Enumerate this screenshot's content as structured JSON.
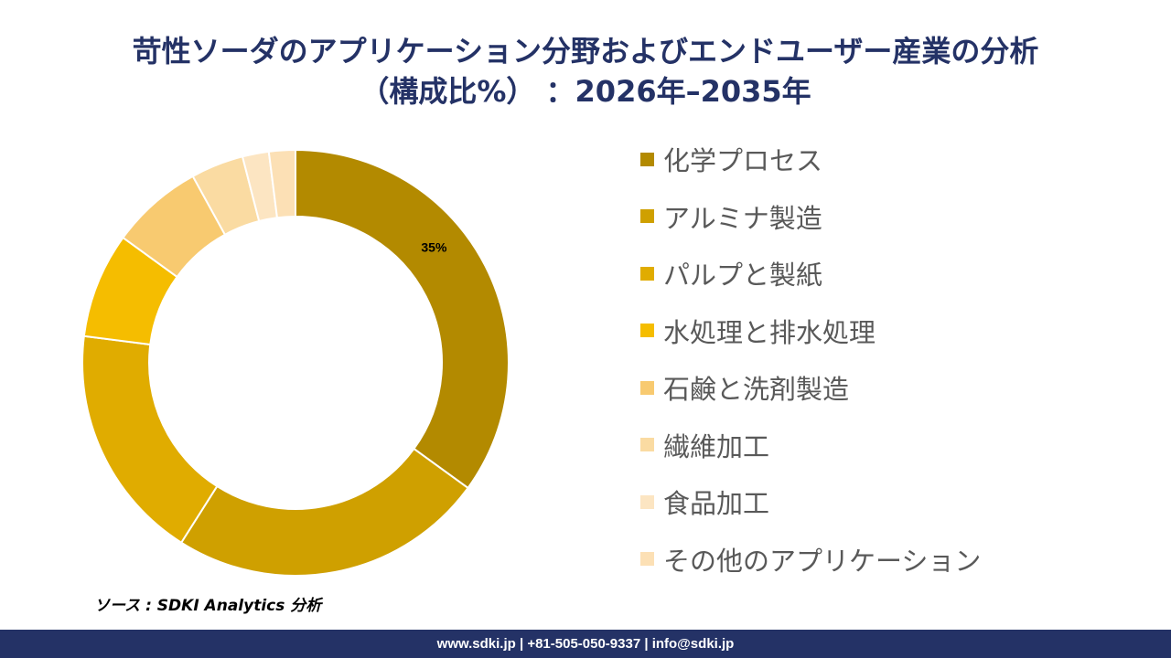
{
  "title": {
    "line1": "苛性ソーダのアプリケーション分野およびエンドユーザー産業の分析",
    "line2": "（構成比%） ：2026年–2035年"
  },
  "chart_data": {
    "type": "pie",
    "donut": true,
    "categories": [
      "化学プロセス",
      "アルミナ製造",
      "パルプと製紙",
      "水処理と排水処理",
      "石鹸と洗剤製造",
      "繊維加工",
      "食品加工",
      "その他のアプリケーション"
    ],
    "values": [
      35,
      24,
      18,
      8,
      7,
      4,
      2,
      2
    ],
    "colors": [
      "#B38A00",
      "#CFA000",
      "#E0AC00",
      "#F5BD00",
      "#F8CA70",
      "#FADBA2",
      "#FCE5C2",
      "#FCE0B5"
    ],
    "data_labels": [
      "35%",
      "",
      "",
      "",
      "",
      "",
      "",
      ""
    ],
    "legend_position": "right"
  },
  "source": "ソース : SDKI Analytics 分析",
  "footer": "www.sdki.jp | +81-505-050-9337 | info@sdki.jp"
}
